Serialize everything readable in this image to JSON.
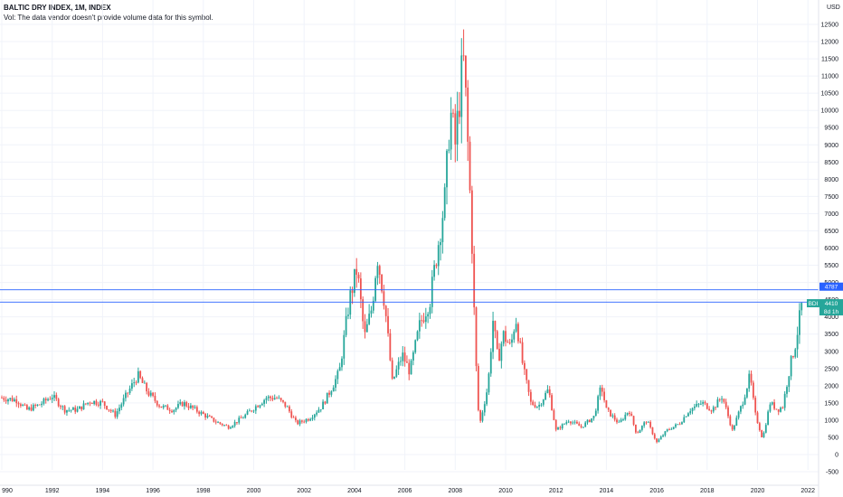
{
  "header": {
    "title": "BALTIC DRY INDEX, 1M, INDEX",
    "volume_note": "Vol: The data vendor doesn't provide volume data for this symbol."
  },
  "currency": "USD",
  "colors": {
    "up": "#26a69a",
    "down": "#ef5350",
    "hline": "#2962ff",
    "last_tag": "#26a69a"
  },
  "chart_data": {
    "type": "candlestick",
    "title": "BALTIC DRY INDEX, 1M, INDEX",
    "xlabel": "",
    "ylabel": "",
    "ylim": [
      -600,
      12600
    ],
    "xlim": [
      1989.95,
      2022.6
    ],
    "y_ticks": [
      -500,
      0,
      500,
      1000,
      1500,
      2000,
      2500,
      3000,
      3500,
      4000,
      4500,
      5000,
      5500,
      6000,
      6500,
      7000,
      7500,
      8000,
      8500,
      9000,
      9500,
      10000,
      10500,
      11000,
      11500,
      12000,
      12500
    ],
    "x_ticks": [
      {
        "year": 1990,
        "label": "990"
      },
      {
        "year": 1992,
        "label": "1992"
      },
      {
        "year": 1994,
        "label": "1994"
      },
      {
        "year": 1996,
        "label": "1996"
      },
      {
        "year": 1998,
        "label": "1998"
      },
      {
        "year": 2000,
        "label": "2000"
      },
      {
        "year": 2002,
        "label": "2002"
      },
      {
        "year": 2004,
        "label": "2004"
      },
      {
        "year": 2006,
        "label": "2006"
      },
      {
        "year": 2008,
        "label": "2008"
      },
      {
        "year": 2010,
        "label": "2010"
      },
      {
        "year": 2012,
        "label": "2012"
      },
      {
        "year": 2014,
        "label": "2014"
      },
      {
        "year": 2016,
        "label": "2016"
      },
      {
        "year": 2018,
        "label": "2018"
      },
      {
        "year": 2020,
        "label": "2020"
      },
      {
        "year": 2022,
        "label": "2022"
      }
    ],
    "horizontal_lines": [
      4787,
      4430
    ],
    "price_tags": [
      {
        "value": 4787,
        "label": "4787",
        "style": "hline"
      },
      {
        "value": 4430,
        "label": "4430",
        "style": "hline"
      },
      {
        "value": 4410,
        "label": "4410",
        "name": "BDI",
        "extra": "8d 1h",
        "style": "last"
      }
    ],
    "close_path": [
      [
        1990.0,
        1650
      ],
      [
        1990.6,
        1580
      ],
      [
        1991.0,
        1300
      ],
      [
        1991.5,
        1450
      ],
      [
        1992.0,
        1700
      ],
      [
        1992.5,
        1300
      ],
      [
        1993.0,
        1300
      ],
      [
        1993.5,
        1550
      ],
      [
        1994.0,
        1500
      ],
      [
        1994.5,
        1150
      ],
      [
        1995.0,
        1800
      ],
      [
        1995.4,
        2300
      ],
      [
        1995.8,
        1800
      ],
      [
        1996.3,
        1400
      ],
      [
        1996.8,
        1300
      ],
      [
        1997.2,
        1500
      ],
      [
        1997.8,
        1250
      ],
      [
        1998.5,
        950
      ],
      [
        1999.0,
        800
      ],
      [
        1999.6,
        1100
      ],
      [
        2000.0,
        1350
      ],
      [
        2000.5,
        1650
      ],
      [
        2000.9,
        1650
      ],
      [
        2001.3,
        1400
      ],
      [
        2001.7,
        900
      ],
      [
        2002.2,
        1050
      ],
      [
        2002.7,
        1400
      ],
      [
        2003.0,
        1800
      ],
      [
        2003.4,
        2400
      ],
      [
        2003.8,
        4500
      ],
      [
        2004.1,
        5400
      ],
      [
        2004.4,
        3400
      ],
      [
        2004.7,
        4300
      ],
      [
        2004.9,
        5800
      ],
      [
        2005.2,
        4400
      ],
      [
        2005.5,
        2100
      ],
      [
        2005.9,
        2900
      ],
      [
        2006.2,
        2400
      ],
      [
        2006.6,
        3800
      ],
      [
        2007.0,
        4500
      ],
      [
        2007.3,
        6000
      ],
      [
        2007.6,
        7500
      ],
      [
        2007.8,
        10000
      ],
      [
        2008.0,
        9000
      ],
      [
        2008.25,
        11000
      ],
      [
        2008.35,
        11400
      ],
      [
        2008.5,
        9000
      ],
      [
        2008.65,
        6500
      ],
      [
        2008.8,
        3000
      ],
      [
        2008.95,
        800
      ],
      [
        2009.3,
        2000
      ],
      [
        2009.5,
        3900
      ],
      [
        2009.7,
        2700
      ],
      [
        2009.9,
        3500
      ],
      [
        2010.2,
        3100
      ],
      [
        2010.4,
        4000
      ],
      [
        2010.7,
        2500
      ],
      [
        2011.0,
        1500
      ],
      [
        2011.3,
        1400
      ],
      [
        2011.7,
        1900
      ],
      [
        2012.0,
        700
      ],
      [
        2012.5,
        1000
      ],
      [
        2013.0,
        800
      ],
      [
        2013.5,
        1100
      ],
      [
        2013.8,
        2000
      ],
      [
        2014.0,
        1300
      ],
      [
        2014.5,
        900
      ],
      [
        2014.9,
        1300
      ],
      [
        2015.2,
        600
      ],
      [
        2015.6,
        1000
      ],
      [
        2016.0,
        350
      ],
      [
        2016.4,
        700
      ],
      [
        2016.9,
        900
      ],
      [
        2017.3,
        1300
      ],
      [
        2017.8,
        1500
      ],
      [
        2018.2,
        1300
      ],
      [
        2018.6,
        1700
      ],
      [
        2019.0,
        700
      ],
      [
        2019.4,
        1500
      ],
      [
        2019.7,
        2300
      ],
      [
        2019.9,
        1200
      ],
      [
        2020.2,
        450
      ],
      [
        2020.5,
        1500
      ],
      [
        2020.8,
        1300
      ],
      [
        2021.0,
        1400
      ],
      [
        2021.3,
        2600
      ],
      [
        2021.5,
        3200
      ],
      [
        2021.7,
        4100
      ],
      [
        2021.75,
        4410
      ]
    ]
  }
}
